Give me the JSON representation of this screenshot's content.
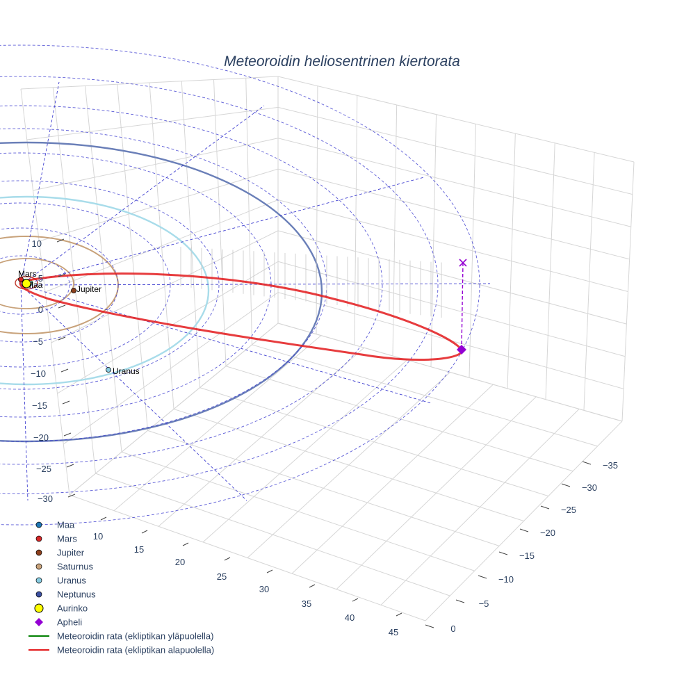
{
  "chart_data": {
    "type": "scatter3d",
    "title": "Meteoroidin heliosentrinen kiertorata",
    "xaxis": {
      "ticks": [
        "10",
        "15",
        "20",
        "25",
        "30",
        "35",
        "40",
        "45"
      ]
    },
    "yaxis": {
      "ticks": [
        "−35",
        "−30",
        "−25",
        "−20",
        "−15",
        "−10",
        "−5",
        "0"
      ]
    },
    "zaxis": {
      "ticks": [
        "10",
        "5",
        "0",
        "−5",
        "−10",
        "−15",
        "−20",
        "−25",
        "−30"
      ]
    },
    "planets": [
      {
        "name": "Maa",
        "color": "#1f77b4",
        "label": "Maa"
      },
      {
        "name": "Mars",
        "color": "#d62728",
        "label": "Mars"
      },
      {
        "name": "Jupiter",
        "color": "#8c3f1c",
        "label": "Jupiter"
      },
      {
        "name": "Saturnus",
        "color": "#c8a27a",
        "label": ""
      },
      {
        "name": "Uranus",
        "color": "#87cbe0",
        "label": "Uranus"
      },
      {
        "name": "Neptunus",
        "color": "#3b4fa0",
        "label": ""
      },
      {
        "name": "Aurinko",
        "color": "#ffff00",
        "label": ""
      }
    ],
    "orbit_colors": {
      "saturnus": "#c8a27a",
      "uranus": "#a8dcea",
      "neptunus": "#6a7fb8",
      "mars": "#c0392b",
      "grid": "#3f3fd0"
    },
    "apheli": {
      "name": "Apheli",
      "color": "#9400d3"
    },
    "legend": [
      {
        "label": "Maa",
        "marker": "circle",
        "color": "#1f77b4"
      },
      {
        "label": "Mars",
        "marker": "circle",
        "color": "#d62728"
      },
      {
        "label": "Jupiter",
        "marker": "circle",
        "color": "#8c3f1c"
      },
      {
        "label": "Saturnus",
        "marker": "circle",
        "color": "#c8a27a"
      },
      {
        "label": "Uranus",
        "marker": "circle",
        "color": "#87cbe0"
      },
      {
        "label": "Neptunus",
        "marker": "circle",
        "color": "#3b4fa0"
      },
      {
        "label": "Aurinko",
        "marker": "circle-large",
        "color": "#ffff00"
      },
      {
        "label": "Apheli",
        "marker": "diamond",
        "color": "#9400d3"
      },
      {
        "label": "Meteoroidin rata (ekliptikan yläpuolella)",
        "marker": "line",
        "color": "#008000"
      },
      {
        "label": "Meteoroidin rata (ekliptikan alapuolella)",
        "marker": "line",
        "color": "#e31a1c"
      }
    ]
  }
}
